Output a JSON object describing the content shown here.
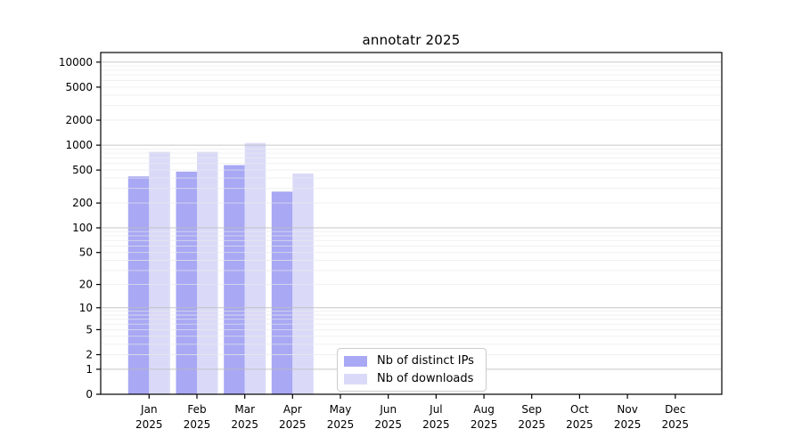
{
  "chart_data": {
    "type": "bar",
    "title": "annotatr 2025",
    "y_scale": "log1p",
    "ylim": [
      0,
      13000
    ],
    "yticks": [
      0,
      1,
      2,
      5,
      10,
      20,
      50,
      100,
      200,
      500,
      1000,
      2000,
      5000,
      10000
    ],
    "categories": [
      "Jan",
      "Feb",
      "Mar",
      "Apr",
      "May",
      "Jun",
      "Jul",
      "Aug",
      "Sep",
      "Oct",
      "Nov",
      "Dec"
    ],
    "category_year": "2025",
    "series": [
      {
        "name": "Nb of distinct IPs",
        "color": "#a8a8f4",
        "values": [
          420,
          480,
          575,
          275,
          null,
          null,
          null,
          null,
          null,
          null,
          null,
          null
        ]
      },
      {
        "name": "Nb of downloads",
        "color": "#dadaf8",
        "values": [
          830,
          830,
          1060,
          455,
          null,
          null,
          null,
          null,
          null,
          null,
          null,
          null
        ]
      }
    ],
    "grid": "on",
    "legend_position": "bottom-center",
    "colors": {
      "major_grid": "#bdbdbd",
      "minor_grid": "#e9e9e9",
      "axis": "#000000",
      "text": "#000000",
      "background": "#ffffff"
    }
  }
}
